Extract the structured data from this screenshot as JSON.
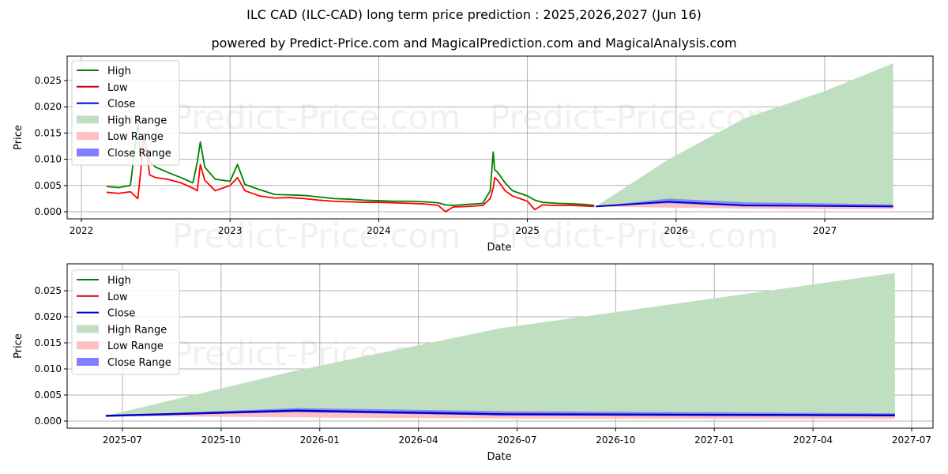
{
  "header": {
    "title": "ILC CAD (ILC-CAD) long term price prediction : 2025,2026,2027 (Jun 16)",
    "subtitle": "powered by Predict-Price.com and MagicalPrediction.com and MagicalAnalysis.com"
  },
  "watermark": "Predict-Price.com",
  "colors": {
    "high": "#008000",
    "low": "#ff0000",
    "close": "#0000cc",
    "high_range": "#c0dfc0",
    "low_range": "#ffc0c0",
    "close_range": "#7f7fff",
    "grid": "#b0b0b0"
  },
  "legend": {
    "items": [
      {
        "label": "High",
        "kind": "line",
        "color": "#008000"
      },
      {
        "label": "Low",
        "kind": "line",
        "color": "#cc0000"
      },
      {
        "label": "Close",
        "kind": "line",
        "color": "#0000cc"
      },
      {
        "label": "High Range",
        "kind": "patch",
        "color": "#c0dfc0"
      },
      {
        "label": "Low Range",
        "kind": "patch",
        "color": "#ffc0c0"
      },
      {
        "label": "Close Range",
        "kind": "patch",
        "color": "#7f7fff"
      }
    ]
  },
  "chart_data": [
    {
      "type": "line",
      "title": "Long term (history + forecast)",
      "xlabel": "Date",
      "ylabel": "Price",
      "ylim": [
        -0.0012,
        0.0296
      ],
      "yticks": [
        "0.000",
        "0.005",
        "0.010",
        "0.015",
        "0.020",
        "0.025"
      ],
      "xticks": [
        "2022",
        "2023",
        "2024",
        "2025",
        "2026",
        "2027"
      ],
      "grid": true,
      "legend_position": "upper left",
      "history": {
        "x": [
          2022.17,
          2022.25,
          2022.33,
          2022.38,
          2022.4,
          2022.42,
          2022.46,
          2022.5,
          2022.58,
          2022.67,
          2022.75,
          2022.78,
          2022.8,
          2022.83,
          2022.9,
          2022.95,
          2023.0,
          2023.05,
          2023.1,
          2023.2,
          2023.3,
          2023.4,
          2023.5,
          2023.6,
          2023.7,
          2023.8,
          2023.9,
          2024.0,
          2024.1,
          2024.2,
          2024.3,
          2024.4,
          2024.45,
          2024.5,
          2024.6,
          2024.7,
          2024.75,
          2024.77,
          2024.78,
          2024.8,
          2024.85,
          2024.9,
          2024.95,
          2025.0,
          2025.05,
          2025.1,
          2025.2,
          2025.3,
          2025.38,
          2025.45
        ],
        "high": [
          0.0048,
          0.0046,
          0.005,
          0.017,
          0.01,
          0.014,
          0.0095,
          0.0085,
          0.0075,
          0.0065,
          0.0055,
          0.0095,
          0.0133,
          0.0085,
          0.0062,
          0.006,
          0.0058,
          0.009,
          0.0052,
          0.0042,
          0.0033,
          0.0032,
          0.0031,
          0.0028,
          0.0025,
          0.0024,
          0.0022,
          0.0021,
          0.002,
          0.002,
          0.0019,
          0.0017,
          0.0013,
          0.0012,
          0.0014,
          0.0016,
          0.004,
          0.0114,
          0.008,
          0.0075,
          0.0055,
          0.004,
          0.0035,
          0.003,
          0.0022,
          0.0018,
          0.0016,
          0.0015,
          0.0014,
          0.0012
        ],
        "low": [
          0.0037,
          0.0035,
          0.0038,
          0.0025,
          0.008,
          0.015,
          0.007,
          0.0065,
          0.0062,
          0.0055,
          0.0045,
          0.004,
          0.009,
          0.006,
          0.004,
          0.0045,
          0.005,
          0.0065,
          0.004,
          0.003,
          0.0026,
          0.0027,
          0.0025,
          0.0022,
          0.002,
          0.0019,
          0.0018,
          0.0018,
          0.0017,
          0.0016,
          0.0015,
          0.0012,
          0.0,
          0.0009,
          0.001,
          0.0012,
          0.0025,
          0.0045,
          0.0065,
          0.006,
          0.004,
          0.003,
          0.0025,
          0.002,
          0.0004,
          0.0013,
          0.0012,
          0.0012,
          0.0011,
          0.001
        ]
      },
      "forecast": {
        "x": [
          2025.46,
          2025.95,
          2026.46,
          2027.0,
          2027.46
        ],
        "close": [
          0.001,
          0.0019,
          0.0012,
          0.0011,
          0.001
        ],
        "high_range": [
          [
            0.001,
            0.001
          ],
          [
            0.001,
            0.01
          ],
          [
            0.001,
            0.0178
          ],
          [
            0.001,
            0.023
          ],
          [
            0.001,
            0.0283
          ]
        ],
        "low_range": [
          [
            0.001,
            0.001
          ],
          [
            0.0008,
            0.0016
          ],
          [
            0.0006,
            0.0011
          ],
          [
            0.0005,
            0.001
          ],
          [
            0.0005,
            0.0009
          ]
        ],
        "close_range": [
          [
            0.001,
            0.001
          ],
          [
            0.0016,
            0.0025
          ],
          [
            0.001,
            0.0018
          ],
          [
            0.001,
            0.0016
          ],
          [
            0.0009,
            0.0014
          ]
        ]
      }
    },
    {
      "type": "line",
      "title": "Forecast detail",
      "xlabel": "Date",
      "ylabel": "Price",
      "ylim": [
        -0.0013,
        0.0295
      ],
      "yticks": [
        "0.000",
        "0.005",
        "0.010",
        "0.015",
        "0.020",
        "0.025"
      ],
      "xticks": [
        "2025-07",
        "2025-10",
        "2026-01",
        "2026-04",
        "2026-07",
        "2026-10",
        "2027-01",
        "2027-04",
        "2027-07"
      ],
      "grid": true,
      "legend_position": "upper left",
      "forecast": {
        "x": [
          "2025-06-16",
          "2025-12-10",
          "2026-06-16",
          "2027-06-16"
        ],
        "close": [
          0.001,
          0.002,
          0.0013,
          0.0011
        ],
        "high_range": [
          [
            0.001,
            0.001
          ],
          [
            0.001,
            0.0097
          ],
          [
            0.001,
            0.0178
          ],
          [
            0.001,
            0.0284
          ]
        ],
        "low_range": [
          [
            0.001,
            0.001
          ],
          [
            0.0007,
            0.0017
          ],
          [
            0.0005,
            0.0012
          ],
          [
            0.0004,
            0.001
          ]
        ],
        "close_range": [
          [
            0.001,
            0.001
          ],
          [
            0.0017,
            0.0025
          ],
          [
            0.0011,
            0.0019
          ],
          [
            0.001,
            0.0015
          ]
        ]
      }
    }
  ]
}
